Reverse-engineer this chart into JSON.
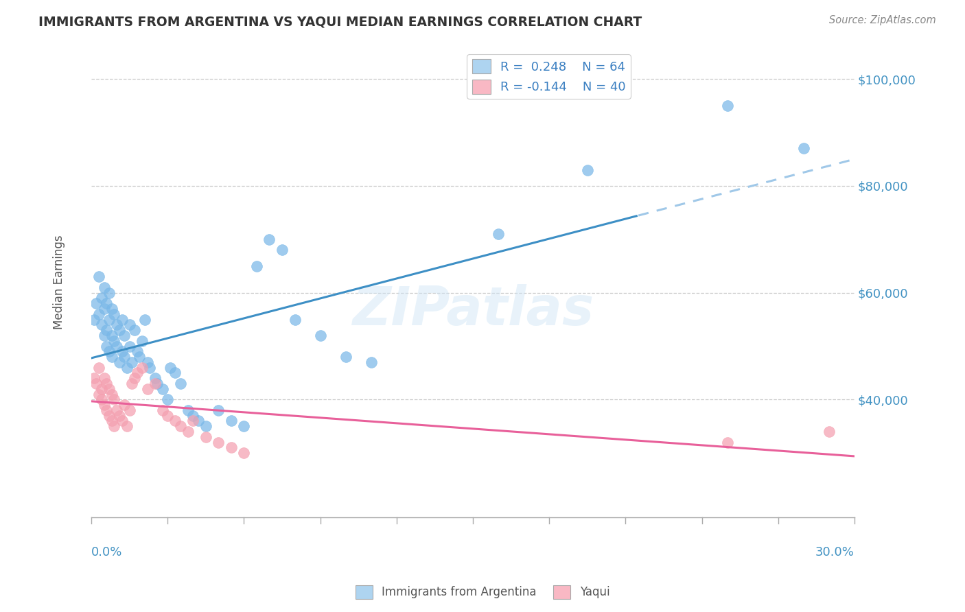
{
  "title": "IMMIGRANTS FROM ARGENTINA VS YAQUI MEDIAN EARNINGS CORRELATION CHART",
  "source": "Source: ZipAtlas.com",
  "ylabel": "Median Earnings",
  "xmin": 0.0,
  "xmax": 0.3,
  "ymin": 18000,
  "ymax": 106000,
  "yticks": [
    40000,
    60000,
    80000,
    100000
  ],
  "ytick_labels": [
    "$40,000",
    "$60,000",
    "$80,000",
    "$100,000"
  ],
  "blue_color": "#7ab8e8",
  "pink_color": "#f4a0b0",
  "trend_blue_solid": "#3d8fc5",
  "trend_blue_dash": "#a0c8e8",
  "trend_pink": "#e8609a",
  "watermark": "ZIPatlas",
  "blue_scatter_x": [
    0.001,
    0.002,
    0.003,
    0.003,
    0.004,
    0.004,
    0.005,
    0.005,
    0.005,
    0.006,
    0.006,
    0.006,
    0.007,
    0.007,
    0.007,
    0.008,
    0.008,
    0.008,
    0.009,
    0.009,
    0.01,
    0.01,
    0.011,
    0.011,
    0.012,
    0.012,
    0.013,
    0.013,
    0.014,
    0.015,
    0.015,
    0.016,
    0.017,
    0.018,
    0.019,
    0.02,
    0.021,
    0.022,
    0.023,
    0.025,
    0.026,
    0.028,
    0.03,
    0.031,
    0.033,
    0.035,
    0.038,
    0.04,
    0.042,
    0.045,
    0.05,
    0.055,
    0.06,
    0.065,
    0.07,
    0.075,
    0.08,
    0.09,
    0.1,
    0.11,
    0.16,
    0.195,
    0.25,
    0.28
  ],
  "blue_scatter_y": [
    55000,
    58000,
    56000,
    63000,
    54000,
    59000,
    52000,
    57000,
    61000,
    50000,
    53000,
    58000,
    49000,
    55000,
    60000,
    48000,
    52000,
    57000,
    51000,
    56000,
    50000,
    54000,
    47000,
    53000,
    49000,
    55000,
    48000,
    52000,
    46000,
    50000,
    54000,
    47000,
    53000,
    49000,
    48000,
    51000,
    55000,
    47000,
    46000,
    44000,
    43000,
    42000,
    40000,
    46000,
    45000,
    43000,
    38000,
    37000,
    36000,
    35000,
    38000,
    36000,
    35000,
    65000,
    70000,
    68000,
    55000,
    52000,
    48000,
    47000,
    71000,
    83000,
    95000,
    87000
  ],
  "pink_scatter_x": [
    0.001,
    0.002,
    0.003,
    0.003,
    0.004,
    0.004,
    0.005,
    0.005,
    0.006,
    0.006,
    0.007,
    0.007,
    0.008,
    0.008,
    0.009,
    0.009,
    0.01,
    0.011,
    0.012,
    0.013,
    0.014,
    0.015,
    0.016,
    0.017,
    0.018,
    0.02,
    0.022,
    0.025,
    0.028,
    0.03,
    0.033,
    0.035,
    0.038,
    0.04,
    0.045,
    0.05,
    0.055,
    0.06,
    0.25,
    0.29
  ],
  "pink_scatter_y": [
    44000,
    43000,
    46000,
    41000,
    42000,
    40000,
    39000,
    44000,
    38000,
    43000,
    37000,
    42000,
    36000,
    41000,
    35000,
    40000,
    38000,
    37000,
    36000,
    39000,
    35000,
    38000,
    43000,
    44000,
    45000,
    46000,
    42000,
    43000,
    38000,
    37000,
    36000,
    35000,
    34000,
    36000,
    33000,
    32000,
    31000,
    30000,
    32000,
    34000
  ]
}
